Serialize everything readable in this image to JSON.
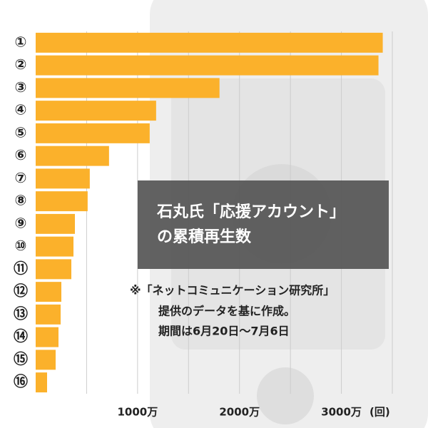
{
  "chart_data": {
    "type": "hbar",
    "title": [
      "石丸氏「応援アカウント」",
      "の累積再生数"
    ],
    "note": [
      "※「ネットコミュニケーション研究所」",
      "提供のデータを基に作成。",
      "期間は6月20日～7月6日"
    ],
    "x_unit": "(回)",
    "categories": [
      "①",
      "②",
      "③",
      "④",
      "⑤",
      "⑥",
      "⑦",
      "⑧",
      "⑨",
      "⑩",
      "⑪",
      "⑫",
      "⑬",
      "⑭",
      "⑮",
      "⑯"
    ],
    "values": [
      3406,
      3364,
      1804,
      1182,
      1119,
      720,
      531,
      510,
      385,
      371,
      350,
      252,
      245,
      224,
      196,
      112
    ],
    "color": "#fbb12b",
    "xlim": [
      0,
      3500
    ],
    "xticks": [
      {
        "value": 1000,
        "label": "1000万"
      },
      {
        "value": 2000,
        "label": "2000万"
      },
      {
        "value": 3000,
        "label": "3000万"
      }
    ],
    "xminor_ticks": [
      500,
      1500,
      2500,
      3500
    ],
    "grid": true
  }
}
